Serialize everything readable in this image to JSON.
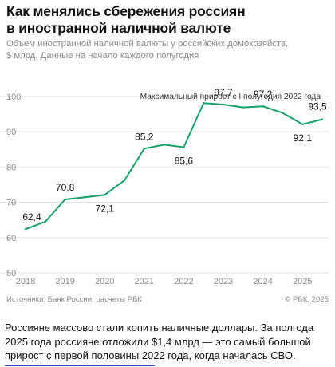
{
  "title_lines": [
    "Как менялись сбережения россиян",
    "в иностранной наличной валюте"
  ],
  "subtitle_lines": [
    "Объем иностранной наличной валюты у российских домохозяйств,",
    "$ млрд. Данные на начало каждого полугодия"
  ],
  "chart_data": {
    "type": "line",
    "title": "Как менялись сбережения россиян в иностранной наличной валюте",
    "subtitle": "Объем иностранной наличной валюты у российских домохозяйств, $ млрд. Данные на начало каждого полугодия",
    "x_tick_labels": [
      "2018",
      "2019",
      "2020",
      "2021",
      "2022",
      "2023",
      "2024",
      "2025"
    ],
    "x": [
      "2018-01",
      "2018-07",
      "2019-01",
      "2019-07",
      "2020-01",
      "2020-07",
      "2021-01",
      "2021-07",
      "2022-01",
      "2022-07",
      "2023-01",
      "2023-07",
      "2024-01",
      "2024-07",
      "2025-01",
      "2025-07"
    ],
    "series": [
      {
        "values": [
          62.4,
          64.5,
          70.8,
          71.4,
          72.1,
          76.2,
          85.2,
          86.3,
          85.6,
          98.1,
          97.7,
          96.9,
          97.2,
          95.3,
          92.1,
          93.5
        ]
      }
    ],
    "y_ticks": [
      50,
      60,
      70,
      80,
      90,
      100
    ],
    "ylim": [
      50,
      102
    ],
    "grid": true,
    "line_color": "#15a36a",
    "data_labels": [
      {
        "index": 0,
        "text": "62,4"
      },
      {
        "index": 2,
        "text": "70,8"
      },
      {
        "index": 4,
        "text": "72,1"
      },
      {
        "index": 6,
        "text": "85,2"
      },
      {
        "index": 8,
        "text": "85,6"
      },
      {
        "index": 10,
        "text": "97,7"
      },
      {
        "index": 12,
        "text": "97,2"
      },
      {
        "index": 14,
        "text": "92,1"
      },
      {
        "index": 15,
        "text": "93,5"
      }
    ],
    "annotation": "Максимальный прирост с I полугодия 2022 года"
  },
  "footer": {
    "source": "Источники: Банк России, расчеты РБК",
    "copyright": "© РБК, 2025"
  },
  "caption_lines": [
    "Россияне массово стали копить наличные доллары. За полгода",
    "2025 года россияне отложили $1,4 млрд — это самый большой",
    "прирост с первой половины 2022 года, когда началась СВО."
  ]
}
